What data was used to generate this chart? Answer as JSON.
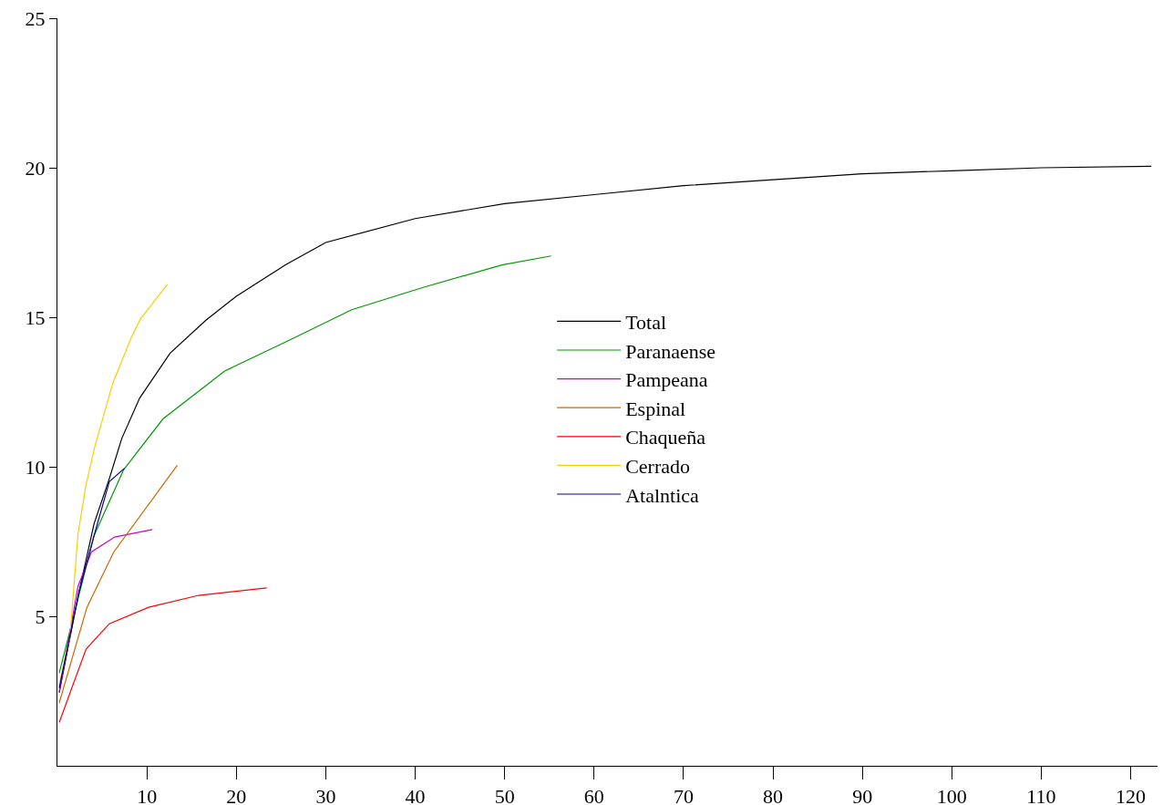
{
  "chart_data": {
    "type": "line",
    "xlim": [
      0,
      123
    ],
    "ylim": [
      0,
      25
    ],
    "xticks": [
      10,
      20,
      30,
      40,
      50,
      60,
      70,
      80,
      90,
      100,
      110,
      120
    ],
    "yticks": [
      5,
      10,
      15,
      20,
      25
    ],
    "grid": false,
    "legend": "right",
    "marker": "none",
    "line_style": "solid",
    "series": [
      {
        "name": "Total",
        "color": "#000000",
        "x": [
          0.2,
          2.4,
          4.1,
          5.8,
          7.2,
          9.2,
          12.6,
          16.6,
          20,
          25.5,
          30,
          40,
          50,
          60,
          70,
          80,
          90,
          100,
          110,
          122.3
        ],
        "values": [
          2.45,
          5.8,
          8.1,
          9.6,
          10.95,
          12.3,
          13.8,
          14.9,
          15.7,
          16.75,
          17.5,
          18.3,
          18.8,
          19.1,
          19.4,
          19.6,
          19.8,
          19.9,
          20,
          20.05
        ]
      },
      {
        "name": "Paranaense",
        "color": "#009900",
        "x": [
          0.2,
          2.4,
          4.1,
          7.4,
          11.8,
          18.7,
          25.7,
          32.9,
          40.9,
          49.7,
          55.2
        ],
        "values": [
          3.1,
          5.7,
          7.7,
          9.9,
          11.6,
          13.2,
          14.2,
          15.25,
          16,
          16.75,
          17.05
        ]
      },
      {
        "name": "Pampeana",
        "color": "#cc00cc",
        "x": [
          0.2,
          2.3,
          3.8,
          6.4,
          10.6
        ],
        "values": [
          2.45,
          6,
          7.15,
          7.65,
          7.9
        ]
      },
      {
        "name": "Espinal",
        "color": "#cc6600",
        "x": [
          0.2,
          3.3,
          6.3,
          13.4
        ],
        "values": [
          2.1,
          5.3,
          7.15,
          10.05
        ]
      },
      {
        "name": "Chaqueña",
        "color": "#ff0000",
        "x": [
          0.2,
          3.2,
          5.8,
          10.2,
          15.8,
          23.4
        ],
        "values": [
          1.45,
          3.9,
          4.75,
          5.3,
          5.7,
          5.95
        ]
      },
      {
        "name": "Cerrado",
        "color": "#ffcc00",
        "x": [
          0.3,
          1.4,
          2.3,
          3.2,
          4.2,
          6.2,
          8.3,
          9.3,
          12.3
        ],
        "values": [
          2.85,
          4.3,
          7.75,
          9.4,
          10.7,
          12.8,
          14.35,
          14.95,
          16.1
        ]
      },
      {
        "name": "Atalntica",
        "color": "#000099",
        "x": [
          0.2,
          2.4,
          4.1,
          5.8,
          7.5
        ],
        "values": [
          2.6,
          5.8,
          7.7,
          9.5,
          9.95
        ]
      }
    ]
  }
}
